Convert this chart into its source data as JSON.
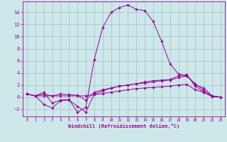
{
  "xlabel": "Windchill (Refroidissement éolien,°C)",
  "background_color": "#cce8e8",
  "grid_color": "#aabbcc",
  "line_color": "#990099",
  "spine_color": "#884488",
  "x_ticks": [
    0,
    1,
    2,
    3,
    4,
    5,
    6,
    7,
    8,
    9,
    10,
    11,
    12,
    13,
    14,
    15,
    16,
    17,
    18,
    19,
    20,
    21,
    22,
    23
  ],
  "y_ticks": [
    -2,
    0,
    2,
    4,
    6,
    8,
    10,
    12,
    14
  ],
  "ylim": [
    -3.2,
    15.8
  ],
  "xlim": [
    -0.5,
    23.5
  ],
  "lines": [
    {
      "x": [
        0,
        1,
        2,
        3,
        4,
        5,
        6,
        7,
        8,
        9,
        10,
        11,
        12,
        13,
        14,
        15,
        16,
        17,
        18,
        19,
        20,
        21,
        22,
        23
      ],
      "y": [
        0.5,
        0.2,
        0.8,
        -1.0,
        -0.5,
        -0.4,
        -2.5,
        -1.7,
        6.2,
        11.5,
        14.0,
        14.8,
        15.2,
        14.5,
        14.3,
        12.5,
        9.2,
        5.5,
        3.8,
        3.5,
        2.2,
        1.1,
        0.2,
        0.0
      ]
    },
    {
      "x": [
        0,
        1,
        2,
        3,
        4,
        5,
        6,
        7,
        8,
        9,
        10,
        11,
        12,
        13,
        14,
        15,
        16,
        17,
        18,
        19,
        20,
        21,
        22,
        23
      ],
      "y": [
        0.5,
        0.2,
        -1.2,
        -1.8,
        -0.6,
        -0.5,
        -1.5,
        -2.5,
        0.5,
        1.0,
        1.5,
        1.8,
        2.0,
        2.2,
        2.5,
        2.7,
        2.8,
        2.9,
        3.5,
        3.7,
        1.8,
        0.8,
        0.1,
        0.0
      ]
    },
    {
      "x": [
        0,
        1,
        2,
        3,
        4,
        5,
        6,
        7,
        8,
        9,
        10,
        11,
        12,
        13,
        14,
        15,
        16,
        17,
        18,
        19,
        20,
        21,
        22,
        23
      ],
      "y": [
        0.5,
        0.2,
        0.5,
        0.2,
        0.5,
        0.4,
        0.3,
        -0.5,
        0.8,
        1.2,
        1.5,
        1.8,
        2.0,
        2.2,
        2.3,
        2.5,
        2.7,
        2.8,
        3.2,
        3.5,
        2.0,
        1.5,
        0.2,
        0.0
      ]
    },
    {
      "x": [
        0,
        1,
        2,
        3,
        4,
        5,
        6,
        7,
        8,
        9,
        10,
        11,
        12,
        13,
        14,
        15,
        16,
        17,
        18,
        19,
        20,
        21,
        22,
        23
      ],
      "y": [
        0.5,
        0.2,
        0.2,
        0.2,
        0.2,
        0.2,
        0.2,
        0.2,
        0.4,
        0.6,
        0.8,
        1.0,
        1.2,
        1.4,
        1.5,
        1.6,
        1.7,
        1.8,
        2.0,
        2.1,
        1.2,
        0.8,
        0.1,
        0.0
      ]
    }
  ]
}
